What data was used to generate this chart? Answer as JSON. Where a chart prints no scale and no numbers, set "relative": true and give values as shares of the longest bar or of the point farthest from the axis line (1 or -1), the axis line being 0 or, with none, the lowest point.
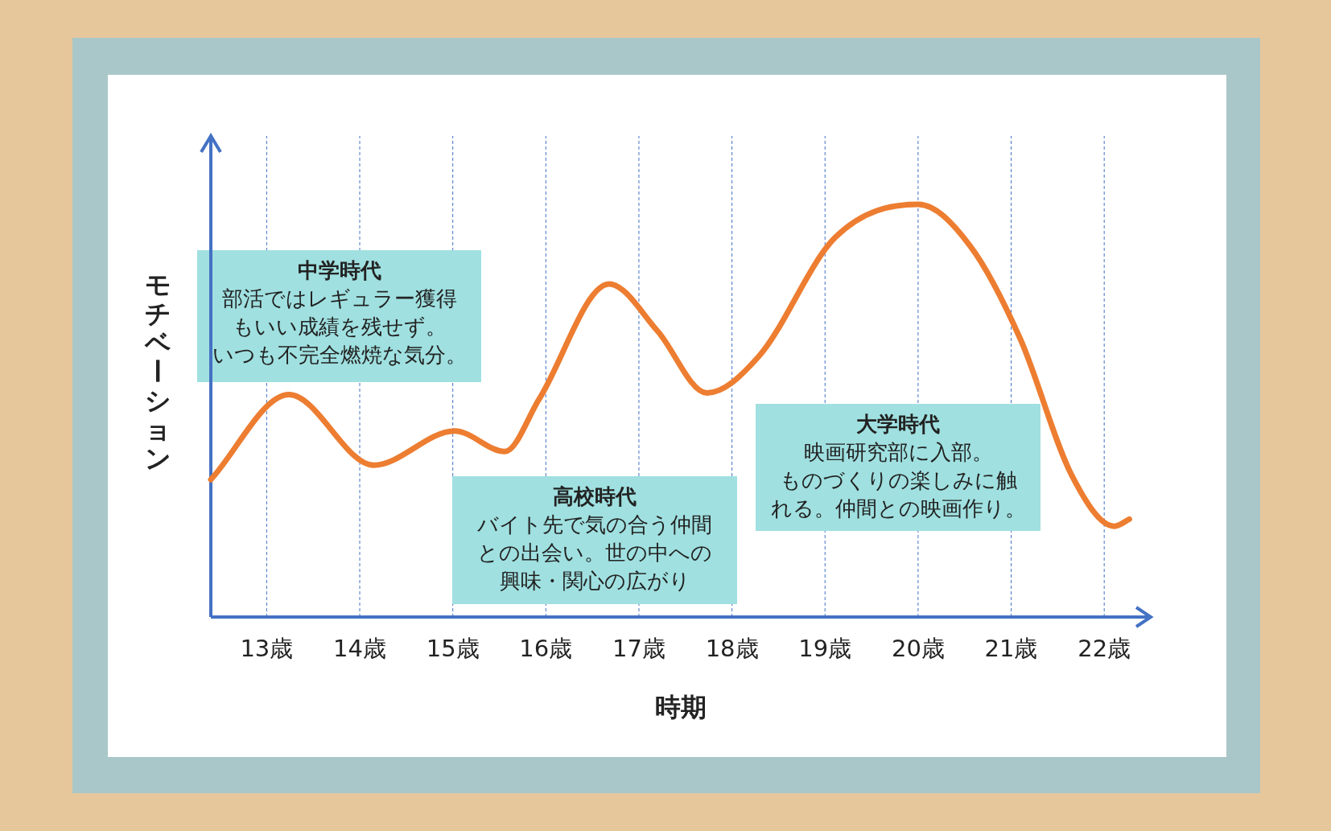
{
  "chart_data": {
    "type": "line",
    "relative": true,
    "xlabel": "時期",
    "ylabel": "モチベーション",
    "x": [
      12.4,
      13.24,
      14.15,
      15.02,
      15.56,
      15.93,
      16.68,
      17.2,
      17.73,
      18.29,
      19.11,
      20.0,
      20.56,
      21.1,
      21.65,
      22.11,
      22.27
    ],
    "series": [
      {
        "color": "#ed7d31",
        "values": [
          0.333,
          0.539,
          0.368,
          0.451,
          0.401,
          0.529,
          0.807,
          0.693,
          0.543,
          0.632,
          0.92,
          1,
          0.899,
          0.673,
          0.344,
          0.22,
          0.237
        ]
      }
    ],
    "xlim": [
      12.4,
      22.5
    ],
    "xticks": [
      {
        "value": 13,
        "label": "13歳"
      },
      {
        "value": 14,
        "label": "14歳"
      },
      {
        "value": 15,
        "label": "15歳"
      },
      {
        "value": 16,
        "label": "16歳"
      },
      {
        "value": 17,
        "label": "17歳"
      },
      {
        "value": 18,
        "label": "18歳"
      },
      {
        "value": 19,
        "label": "19歳"
      },
      {
        "value": 20,
        "label": "20歳"
      },
      {
        "value": 21,
        "label": "21歳"
      },
      {
        "value": 22,
        "label": "22歳"
      }
    ],
    "grid": "x",
    "annotations": [
      "中学時代",
      "部活ではレギュラー獲得",
      "もいい成績を残せず。",
      "いつも不完全燃焼な気分。",
      "高校時代",
      "バイト先で気の合う仲間",
      "との出会い。世の中への",
      "興味・関心の広がり",
      "大学時代",
      "映画研究部に入部。",
      "ものづくりの楽しみに触",
      "れる。仲間との映画作り。"
    ]
  }
}
